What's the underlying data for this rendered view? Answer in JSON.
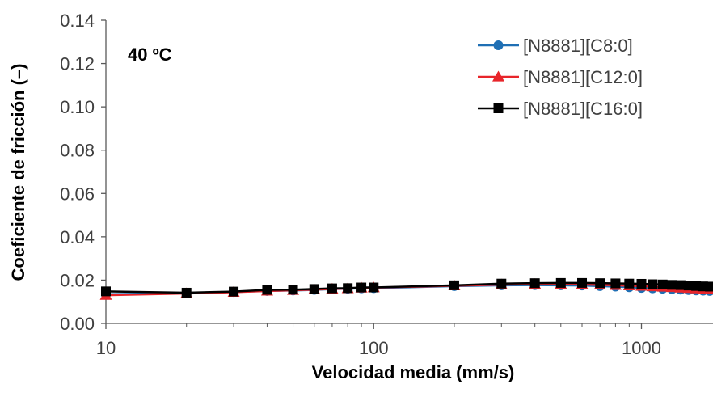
{
  "chart_data": {
    "type": "line",
    "x_scale": "log",
    "xlabel": "Velocidad media (mm/s)",
    "ylabel": "Coeficiente de fricción (–)",
    "annotation": "40 ºC",
    "xlim": [
      10,
      1850
    ],
    "ylim": [
      0,
      0.14
    ],
    "x_ticks": [
      10,
      100,
      1000
    ],
    "x_tick_labels": [
      "10",
      "100",
      "1000"
    ],
    "y_ticks": [
      0,
      0.02,
      0.04,
      0.06,
      0.08,
      0.1,
      0.12,
      0.14
    ],
    "y_tick_labels": [
      "0.00",
      "0.02",
      "0.04",
      "0.06",
      "0.08",
      "0.10",
      "0.12",
      "0.14"
    ],
    "grid": false,
    "legend_position": "top-right",
    "x": [
      10,
      20,
      30,
      40,
      50,
      60,
      70,
      80,
      90,
      100,
      200,
      300,
      400,
      500,
      600,
      700,
      800,
      900,
      1000,
      1100,
      1200,
      1300,
      1400,
      1500,
      1600,
      1700,
      1800
    ],
    "series": [
      {
        "name": "[N8881][C8:0]",
        "color": "#1f6fb4",
        "marker": "circle",
        "values": [
          0.0135,
          0.014,
          0.0145,
          0.015,
          0.0152,
          0.0155,
          0.0158,
          0.016,
          0.0162,
          0.0163,
          0.0172,
          0.0176,
          0.0177,
          0.0176,
          0.0175,
          0.0172,
          0.017,
          0.0167,
          0.0164,
          0.0162,
          0.016,
          0.0158,
          0.0156,
          0.0154,
          0.0152,
          0.0151,
          0.015
        ]
      },
      {
        "name": "[N8881][C12:0]",
        "color": "#e8252a",
        "marker": "triangle",
        "values": [
          0.013,
          0.0138,
          0.0144,
          0.015,
          0.0153,
          0.0156,
          0.0159,
          0.0161,
          0.0164,
          0.0165,
          0.0174,
          0.0179,
          0.0181,
          0.0181,
          0.018,
          0.0178,
          0.0176,
          0.0174,
          0.0172,
          0.017,
          0.0168,
          0.0166,
          0.0164,
          0.0162,
          0.016,
          0.0159,
          0.0158
        ]
      },
      {
        "name": "[N8881][C16:0]",
        "color": "#000000",
        "marker": "square",
        "values": [
          0.0148,
          0.0142,
          0.0147,
          0.0155,
          0.0156,
          0.0159,
          0.0162,
          0.0163,
          0.0166,
          0.0166,
          0.0176,
          0.0184,
          0.0186,
          0.0187,
          0.0187,
          0.0186,
          0.0185,
          0.0184,
          0.0183,
          0.0181,
          0.018,
          0.0178,
          0.0177,
          0.0175,
          0.0173,
          0.0171,
          0.017
        ]
      }
    ]
  }
}
